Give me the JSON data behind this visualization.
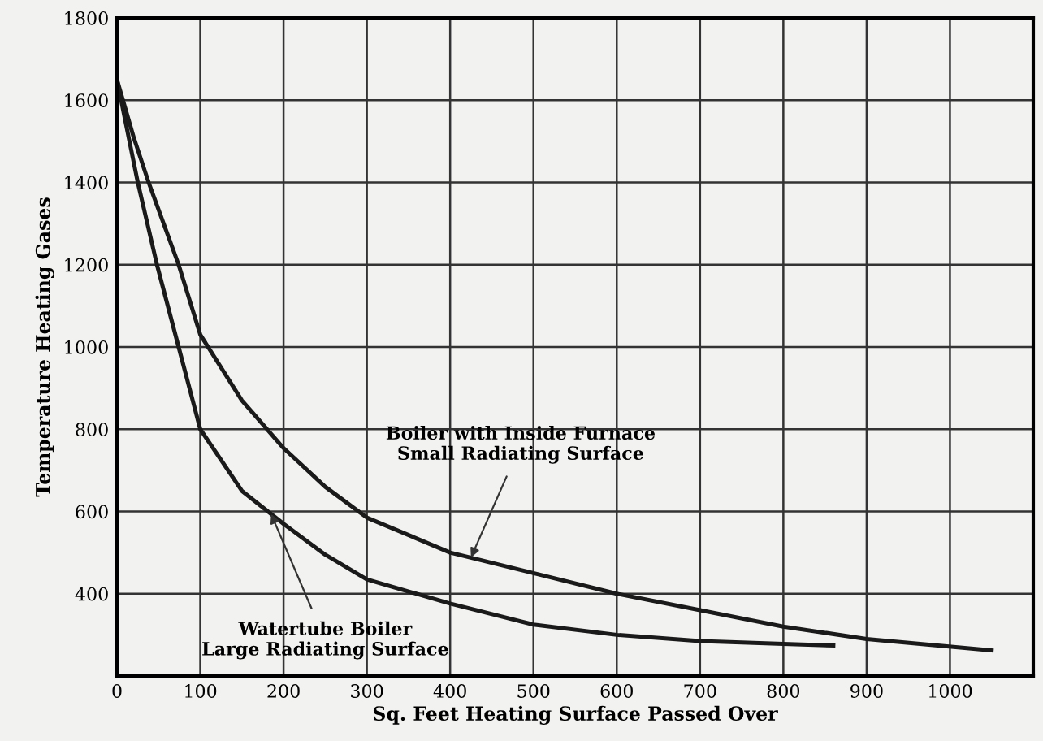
{
  "chart_data": {
    "type": "line",
    "xlabel": "Sq. Feet Heating Surface Passed Over",
    "ylabel": "Temperature Heating Gases",
    "series": [
      {
        "color": "#1a1a1a",
        "x": [
          0,
          20,
          38,
          74,
          100,
          150,
          200,
          250,
          300,
          400,
          500,
          600,
          700,
          800,
          900,
          1050
        ],
        "values": [
          1650,
          1510,
          1400,
          1200,
          1030,
          870,
          754,
          660,
          585,
          500,
          450,
          400,
          360,
          320,
          290,
          262
        ]
      },
      {
        "color": "#1a1a1a",
        "x": [
          0,
          25,
          48,
          74,
          100,
          150,
          200,
          250,
          300,
          400,
          500,
          600,
          700,
          800,
          860
        ],
        "values": [
          1650,
          1400,
          1200,
          1000,
          800,
          650,
          570,
          495,
          435,
          376,
          325,
          300,
          285,
          278,
          274
        ]
      }
    ],
    "annotations": [
      {
        "text": "Boiler with Inside Furnace\nSmall Radiating Surface",
        "x": 425,
        "y": 488
      },
      {
        "text": "Watertube Boiler\nLarge Radiating Surface",
        "x": 185,
        "y": 594
      }
    ],
    "xlim": [
      0,
      1100
    ],
    "ylim": [
      200,
      1800
    ],
    "xticks": [
      0,
      100,
      200,
      300,
      400,
      500,
      600,
      700,
      800,
      900,
      1000
    ],
    "yticks": [
      400,
      600,
      800,
      1000,
      1200,
      1400,
      1600,
      1800
    ],
    "grid": true,
    "marker": "none",
    "line_style": "solid"
  }
}
